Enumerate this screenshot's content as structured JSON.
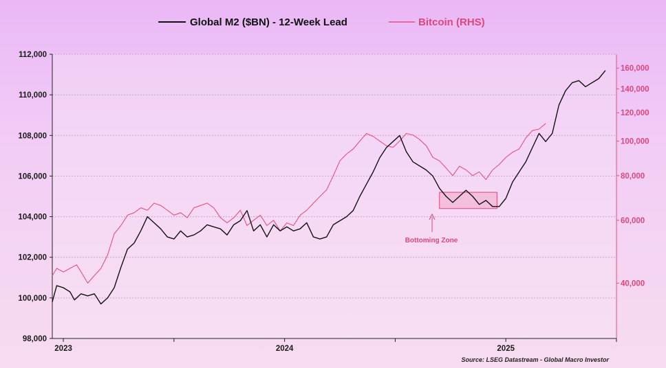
{
  "colors": {
    "m2": "#111111",
    "btc": "#e8507f",
    "grid": "#c9a3c9",
    "zone_fill": "#f2a9c9",
    "zone_stroke": "#e0457b"
  },
  "chart_data": {
    "type": "line",
    "title": "",
    "legend": [
      {
        "name": "Global M2 ($BN) - 12-Week Lead",
        "color": "#111111"
      },
      {
        "name": "Bitcoin (RHS)",
        "color": "#e8507f"
      }
    ],
    "x_ticks": [
      "2023",
      "2024",
      "2025"
    ],
    "y_left": {
      "ticks": [
        "98,000",
        "100,000",
        "102,000",
        "104,000",
        "106,000",
        "108,000",
        "110,000",
        "112,000"
      ],
      "range": [
        98000,
        112000
      ]
    },
    "y_right": {
      "ticks": [
        "40,000",
        "60,000",
        "80,000",
        "100,000",
        "120,000",
        "140,000",
        "160,000"
      ],
      "range": [
        28000,
        175000
      ],
      "scale": "log"
    },
    "x_range": [
      2022.95,
      2025.5
    ],
    "series": [
      {
        "name": "Global M2 ($BN) - 12-Week Lead",
        "axis": "left",
        "points": [
          [
            2022.95,
            99800
          ],
          [
            2022.97,
            100600
          ],
          [
            2023.0,
            100500
          ],
          [
            2023.03,
            100300
          ],
          [
            2023.05,
            99900
          ],
          [
            2023.08,
            100200
          ],
          [
            2023.11,
            100100
          ],
          [
            2023.14,
            100200
          ],
          [
            2023.17,
            99700
          ],
          [
            2023.2,
            100000
          ],
          [
            2023.23,
            100500
          ],
          [
            2023.26,
            101500
          ],
          [
            2023.29,
            102400
          ],
          [
            2023.32,
            102700
          ],
          [
            2023.35,
            103300
          ],
          [
            2023.38,
            104000
          ],
          [
            2023.41,
            103700
          ],
          [
            2023.44,
            103400
          ],
          [
            2023.47,
            103000
          ],
          [
            2023.5,
            102900
          ],
          [
            2023.53,
            103300
          ],
          [
            2023.56,
            103000
          ],
          [
            2023.59,
            103100
          ],
          [
            2023.62,
            103300
          ],
          [
            2023.65,
            103600
          ],
          [
            2023.68,
            103500
          ],
          [
            2023.71,
            103400
          ],
          [
            2023.74,
            103100
          ],
          [
            2023.77,
            103600
          ],
          [
            2023.8,
            103800
          ],
          [
            2023.83,
            104300
          ],
          [
            2023.86,
            103300
          ],
          [
            2023.89,
            103600
          ],
          [
            2023.92,
            103000
          ],
          [
            2023.95,
            103600
          ],
          [
            2023.98,
            103300
          ],
          [
            2024.01,
            103500
          ],
          [
            2024.04,
            103300
          ],
          [
            2024.07,
            103400
          ],
          [
            2024.1,
            103700
          ],
          [
            2024.13,
            103000
          ],
          [
            2024.16,
            102900
          ],
          [
            2024.19,
            103000
          ],
          [
            2024.22,
            103600
          ],
          [
            2024.25,
            103800
          ],
          [
            2024.28,
            104000
          ],
          [
            2024.31,
            104300
          ],
          [
            2024.34,
            105000
          ],
          [
            2024.37,
            105600
          ],
          [
            2024.4,
            106200
          ],
          [
            2024.43,
            106900
          ],
          [
            2024.46,
            107400
          ],
          [
            2024.49,
            107700
          ],
          [
            2024.52,
            108000
          ],
          [
            2024.55,
            107200
          ],
          [
            2024.58,
            106700
          ],
          [
            2024.61,
            106500
          ],
          [
            2024.64,
            106300
          ],
          [
            2024.67,
            106000
          ],
          [
            2024.7,
            105400
          ],
          [
            2024.73,
            105000
          ],
          [
            2024.76,
            104700
          ],
          [
            2024.79,
            105000
          ],
          [
            2024.82,
            105300
          ],
          [
            2024.85,
            105000
          ],
          [
            2024.88,
            104600
          ],
          [
            2024.91,
            104800
          ],
          [
            2024.94,
            104500
          ],
          [
            2024.97,
            104500
          ],
          [
            2025.0,
            104900
          ],
          [
            2025.03,
            105700
          ],
          [
            2025.06,
            106200
          ],
          [
            2025.09,
            106700
          ],
          [
            2025.12,
            107400
          ],
          [
            2025.15,
            108100
          ],
          [
            2025.18,
            107700
          ],
          [
            2025.21,
            108100
          ],
          [
            2025.24,
            109500
          ],
          [
            2025.27,
            110200
          ],
          [
            2025.3,
            110600
          ],
          [
            2025.33,
            110700
          ],
          [
            2025.36,
            110400
          ],
          [
            2025.39,
            110600
          ],
          [
            2025.42,
            110800
          ],
          [
            2025.45,
            111200
          ]
        ]
      },
      {
        "name": "Bitcoin (RHS)",
        "axis": "right",
        "points": [
          [
            2022.95,
            42000
          ],
          [
            2022.97,
            44000
          ],
          [
            2023.0,
            43000
          ],
          [
            2023.03,
            44000
          ],
          [
            2023.06,
            45000
          ],
          [
            2023.08,
            43000
          ],
          [
            2023.11,
            40000
          ],
          [
            2023.14,
            42000
          ],
          [
            2023.17,
            44000
          ],
          [
            2023.2,
            48000
          ],
          [
            2023.23,
            55000
          ],
          [
            2023.26,
            58000
          ],
          [
            2023.29,
            62000
          ],
          [
            2023.32,
            63000
          ],
          [
            2023.35,
            65000
          ],
          [
            2023.38,
            64000
          ],
          [
            2023.41,
            67000
          ],
          [
            2023.44,
            66000
          ],
          [
            2023.47,
            64000
          ],
          [
            2023.5,
            62000
          ],
          [
            2023.53,
            63000
          ],
          [
            2023.56,
            61000
          ],
          [
            2023.59,
            65000
          ],
          [
            2023.62,
            66000
          ],
          [
            2023.65,
            67000
          ],
          [
            2023.68,
            65000
          ],
          [
            2023.71,
            61000
          ],
          [
            2023.74,
            59000
          ],
          [
            2023.77,
            61000
          ],
          [
            2023.8,
            64000
          ],
          [
            2023.83,
            58000
          ],
          [
            2023.86,
            60000
          ],
          [
            2023.89,
            62000
          ],
          [
            2023.92,
            58000
          ],
          [
            2023.95,
            60000
          ],
          [
            2023.98,
            56000
          ],
          [
            2024.01,
            59000
          ],
          [
            2024.04,
            58000
          ],
          [
            2024.07,
            62000
          ],
          [
            2024.1,
            64000
          ],
          [
            2024.13,
            67000
          ],
          [
            2024.16,
            70000
          ],
          [
            2024.19,
            73000
          ],
          [
            2024.22,
            80000
          ],
          [
            2024.25,
            88000
          ],
          [
            2024.28,
            92000
          ],
          [
            2024.31,
            95000
          ],
          [
            2024.34,
            100000
          ],
          [
            2024.37,
            105000
          ],
          [
            2024.4,
            103000
          ],
          [
            2024.43,
            100000
          ],
          [
            2024.46,
            97000
          ],
          [
            2024.49,
            96000
          ],
          [
            2024.52,
            100000
          ],
          [
            2024.55,
            105000
          ],
          [
            2024.58,
            104000
          ],
          [
            2024.61,
            101000
          ],
          [
            2024.64,
            97000
          ],
          [
            2024.67,
            90000
          ],
          [
            2024.7,
            88000
          ],
          [
            2024.73,
            84000
          ],
          [
            2024.76,
            80000
          ],
          [
            2024.79,
            85000
          ],
          [
            2024.82,
            83000
          ],
          [
            2024.85,
            80000
          ],
          [
            2024.88,
            82000
          ],
          [
            2024.91,
            78000
          ],
          [
            2024.94,
            83000
          ],
          [
            2024.97,
            86000
          ],
          [
            2025.0,
            90000
          ],
          [
            2025.03,
            93000
          ],
          [
            2025.06,
            95000
          ],
          [
            2025.09,
            102000
          ],
          [
            2025.12,
            107000
          ],
          [
            2025.15,
            108000
          ],
          [
            2025.18,
            112000
          ]
        ]
      }
    ],
    "annotations": [
      {
        "text": "Bottoming Zone",
        "x_range": [
          2024.7,
          2024.96
        ],
        "y_range": [
          104400,
          105200
        ]
      }
    ],
    "source": "Source: LSEG Datastream - Global Macro Investor"
  }
}
